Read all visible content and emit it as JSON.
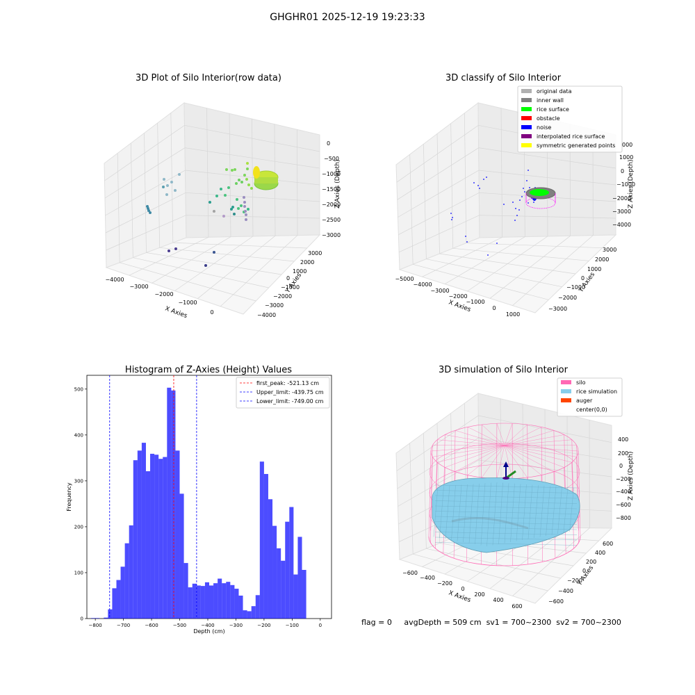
{
  "figure": {
    "suptitle": "GHGHR01 2025-12-19 19:23:33",
    "status_line": {
      "flag": "flag = 0",
      "avg_depth": "avgDepth = 509 cm",
      "sv1": "sv1 = 700~2300",
      "sv2": "sv2 = 700~2300"
    }
  },
  "panels": {
    "raw": {
      "title": "3D Plot of Silo Interior(row data)",
      "xlabel": "X Axies",
      "ylabel": "Y Axies",
      "zlabel": "Z Axies (Depth)",
      "xticks": [
        "−4000",
        "−3000",
        "−2000",
        "−1000",
        "0"
      ],
      "yticks": [
        "3000",
        "2000",
        "1000",
        "0",
        "−1000",
        "−2000",
        "−3000",
        "−4000"
      ],
      "zticks": [
        "0",
        "−500",
        "−1000",
        "−1500",
        "−2000",
        "−2500",
        "−3000"
      ],
      "colormap": "viridis"
    },
    "classify": {
      "title": "3D classify of Silo Interior",
      "xlabel": "X Axies",
      "ylabel": "Y Axies",
      "zlabel": "Z Axies (Depth)",
      "xticks": [
        "−5000",
        "−4000",
        "−3000",
        "−2000",
        "−1000",
        "0",
        "1000"
      ],
      "yticks": [
        "3000",
        "2000",
        "1000",
        "0",
        "−1000",
        "−2000",
        "−3000"
      ],
      "zticks": [
        "1000",
        "0",
        "−1000",
        "−2000",
        "−3000",
        "−4000"
      ],
      "zticks_top_partial": "000",
      "legend_position": "top-right",
      "legend": [
        {
          "label": "original data",
          "color": "#b0b0b0"
        },
        {
          "label": "inner wall",
          "color": "#808080"
        },
        {
          "label": "rice surface",
          "color": "#00ff00"
        },
        {
          "label": "obstacle",
          "color": "#ff0000"
        },
        {
          "label": "noise",
          "color": "#0000ff"
        },
        {
          "label": "interpolated rice surface",
          "color": "#800080"
        },
        {
          "label": "symmetric generated points",
          "color": "#ffff00"
        }
      ]
    },
    "simulation": {
      "title": "3D simulation of Silo Interior",
      "xlabel": "X Axies",
      "ylabel": "Y Axies",
      "zlabel": "Z Axies (Depth)",
      "xticks": [
        "−600",
        "−400",
        "−200",
        "0",
        "200",
        "400",
        "600"
      ],
      "yticks": [
        "600",
        "400",
        "200",
        "0",
        "−200",
        "−400",
        "−600"
      ],
      "zticks": [
        "400",
        "200",
        "0",
        "−200",
        "−400",
        "−600",
        "−800"
      ],
      "legend_position": "top-right",
      "legend": [
        {
          "label": "silo",
          "color": "#ff69b4"
        },
        {
          "label": "rice simulation",
          "color": "#87ceeb"
        },
        {
          "label": "auger",
          "color": "#ff4500"
        },
        {
          "label": "center(0,0)",
          "color": "none"
        }
      ]
    }
  },
  "chart_data": {
    "type": "bar",
    "title": "Histogram of Z-Axies (Height) Values",
    "xlabel": "Depth (cm)",
    "ylabel": "Frequency",
    "xlim": [
      -830,
      40
    ],
    "ylim": [
      0,
      530
    ],
    "xticks": [
      -800,
      -700,
      -600,
      -500,
      -400,
      -300,
      -200,
      -100,
      0
    ],
    "yticks": [
      0,
      100,
      200,
      300,
      400,
      500
    ],
    "bar_color": "#0000ff",
    "bin_width": 15,
    "bins": [
      {
        "x0": -815,
        "count": 1
      },
      {
        "x0": -800,
        "count": 1
      },
      {
        "x0": -785,
        "count": 0
      },
      {
        "x0": -770,
        "count": 2
      },
      {
        "x0": -755,
        "count": 20
      },
      {
        "x0": -740,
        "count": 66
      },
      {
        "x0": -725,
        "count": 84
      },
      {
        "x0": -710,
        "count": 113
      },
      {
        "x0": -695,
        "count": 164
      },
      {
        "x0": -680,
        "count": 203
      },
      {
        "x0": -665,
        "count": 345
      },
      {
        "x0": -650,
        "count": 366
      },
      {
        "x0": -635,
        "count": 383
      },
      {
        "x0": -620,
        "count": 321
      },
      {
        "x0": -605,
        "count": 359
      },
      {
        "x0": -590,
        "count": 357
      },
      {
        "x0": -575,
        "count": 348
      },
      {
        "x0": -560,
        "count": 352
      },
      {
        "x0": -545,
        "count": 503
      },
      {
        "x0": -530,
        "count": 497
      },
      {
        "x0": -515,
        "count": 366
      },
      {
        "x0": -500,
        "count": 272
      },
      {
        "x0": -485,
        "count": 121
      },
      {
        "x0": -470,
        "count": 68
      },
      {
        "x0": -455,
        "count": 76
      },
      {
        "x0": -440,
        "count": 72
      },
      {
        "x0": -425,
        "count": 71
      },
      {
        "x0": -410,
        "count": 79
      },
      {
        "x0": -395,
        "count": 72
      },
      {
        "x0": -380,
        "count": 77
      },
      {
        "x0": -365,
        "count": 87
      },
      {
        "x0": -350,
        "count": 77
      },
      {
        "x0": -335,
        "count": 80
      },
      {
        "x0": -320,
        "count": 73
      },
      {
        "x0": -305,
        "count": 65
      },
      {
        "x0": -290,
        "count": 50
      },
      {
        "x0": -275,
        "count": 18
      },
      {
        "x0": -260,
        "count": 16
      },
      {
        "x0": -245,
        "count": 27
      },
      {
        "x0": -230,
        "count": 51
      },
      {
        "x0": -215,
        "count": 342
      },
      {
        "x0": -200,
        "count": 315
      },
      {
        "x0": -185,
        "count": 260
      },
      {
        "x0": -170,
        "count": 202
      },
      {
        "x0": -155,
        "count": 153
      },
      {
        "x0": -140,
        "count": 126
      },
      {
        "x0": -125,
        "count": 211
      },
      {
        "x0": -110,
        "count": 243
      },
      {
        "x0": -95,
        "count": 96
      },
      {
        "x0": -80,
        "count": 178
      },
      {
        "x0": -65,
        "count": 106
      }
    ],
    "reference_lines": [
      {
        "label": "first_peak: -521.13 cm",
        "value": -521.13,
        "color": "#ff0000"
      },
      {
        "label": "Upper_limit: -439.75 cm",
        "value": -439.75,
        "color": "#0000ff"
      },
      {
        "label": "Lower_limit: -749.00 cm",
        "value": -749.0,
        "color": "#0000ff"
      }
    ],
    "legend_position": "top-right"
  }
}
